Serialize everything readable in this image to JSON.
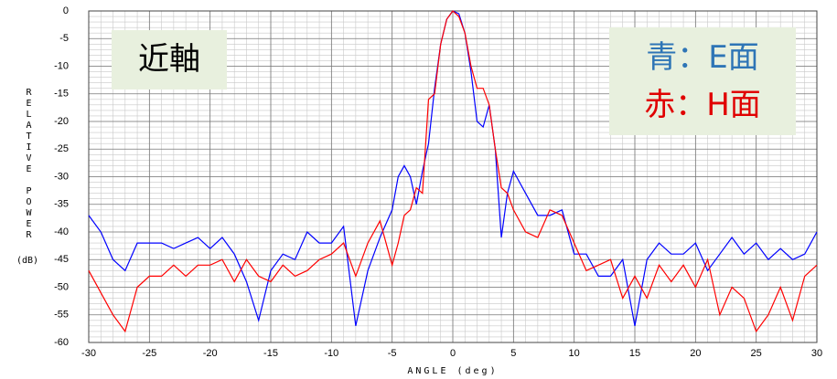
{
  "chart_data": {
    "type": "line",
    "xlabel": "ANGLE (deg)",
    "ylabel": "RELATIVE POWER",
    "yunit": "(dB)",
    "annotations": [
      "近軸"
    ],
    "x": [
      -30,
      -29,
      -28,
      -27,
      -26,
      -25,
      -24,
      -23,
      -22,
      -21,
      -20,
      -19,
      -18,
      -17,
      -16,
      -15,
      -14,
      -13,
      -12,
      -11,
      -10,
      -9,
      -8,
      -7,
      -6,
      -5,
      -4.5,
      -4,
      -3.5,
      -3,
      -2.5,
      -2,
      -1.5,
      -1,
      -0.5,
      0,
      0.5,
      1,
      1.5,
      2,
      2.5,
      3,
      3.5,
      4,
      4.5,
      5,
      6,
      7,
      8,
      9,
      10,
      11,
      12,
      13,
      14,
      15,
      16,
      17,
      18,
      19,
      20,
      21,
      22,
      23,
      24,
      25,
      26,
      27,
      28,
      29,
      30
    ],
    "series": [
      {
        "name": "青：E面",
        "color": "#0000ff",
        "text_color": "#2e75b6",
        "values": [
          -37,
          -40,
          -45,
          -47,
          -42,
          -42,
          -42,
          -43,
          -42,
          -41,
          -43,
          -41,
          -44,
          -49,
          -56,
          -47,
          -44,
          -45,
          -40,
          -42,
          -42,
          -39,
          -57,
          -47,
          -41,
          -36,
          -30,
          -28,
          -30,
          -35,
          -29,
          -24,
          -14,
          -6,
          -1.5,
          0,
          -0.5,
          -4,
          -11,
          -20,
          -21,
          -17,
          -25,
          -41,
          -33,
          -29,
          -33,
          -37,
          -37,
          -36,
          -44,
          -44,
          -48,
          -48,
          -45,
          -57,
          -45,
          -42,
          -44,
          -44,
          -42,
          -47,
          -44,
          -41,
          -44,
          -42,
          -45,
          -43,
          -45,
          -44,
          -40
        ]
      },
      {
        "name": "赤：H面",
        "color": "#ff0000",
        "text_color": "#e00000",
        "values": [
          -47,
          -51,
          -55,
          -58,
          -50,
          -48,
          -48,
          -46,
          -48,
          -46,
          -46,
          -45,
          -49,
          -45,
          -48,
          -49,
          -46,
          -48,
          -47,
          -45,
          -44,
          -42,
          -48,
          -42,
          -38,
          -46,
          -42,
          -37,
          -36,
          -32,
          -33,
          -16,
          -15,
          -6,
          -1.5,
          0,
          -1,
          -4,
          -10,
          -14,
          -14,
          -17,
          -25,
          -32,
          -33,
          -36,
          -40,
          -41,
          -36,
          -37,
          -42,
          -47,
          -46,
          -45,
          -52,
          -48,
          -52,
          -46,
          -49,
          -46,
          -50,
          -45,
          -55,
          -50,
          -52,
          -58,
          -55,
          -50,
          -56,
          -48,
          -46
        ]
      }
    ],
    "xlim": [
      -30,
      30
    ],
    "ylim": [
      -60,
      0
    ],
    "xticks": [
      -30,
      -25,
      -20,
      -15,
      -10,
      -5,
      0,
      5,
      10,
      15,
      20,
      25,
      30
    ],
    "yticks": [
      0,
      -5,
      -10,
      -15,
      -20,
      -25,
      -30,
      -35,
      -40,
      -45,
      -50,
      -55,
      -60
    ],
    "grid": true
  }
}
